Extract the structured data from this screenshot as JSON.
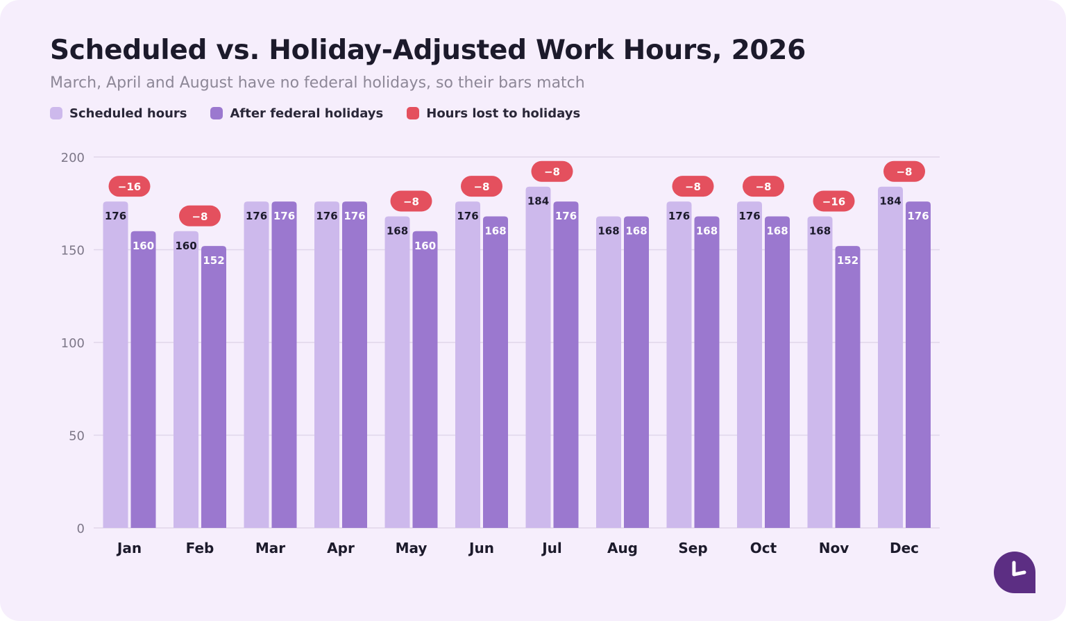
{
  "title": "Scheduled vs. Holiday-Adjusted Work Hours, 2026",
  "subtitle": "March, April and August have no federal holidays, so their bars match",
  "legend": [
    {
      "label": "Scheduled hours",
      "color": "#cdb9ec"
    },
    {
      "label": "After federal holidays",
      "color": "#9b78cf"
    },
    {
      "label": "Hours lost to holidays",
      "color": "#e4505e"
    }
  ],
  "colors": {
    "scheduled": "#cdb9ec",
    "adjusted": "#9b78cf",
    "lost": "#e4505e",
    "grid": "#e0d6ea",
    "brand": "#5c2e83"
  },
  "brand_icon": "clock-logo-icon",
  "chart_data": {
    "type": "bar",
    "categories": [
      "Jan",
      "Feb",
      "Mar",
      "Apr",
      "May",
      "Jun",
      "Jul",
      "Aug",
      "Sep",
      "Oct",
      "Nov",
      "Dec"
    ],
    "series": [
      {
        "name": "Scheduled hours",
        "values": [
          176,
          160,
          176,
          176,
          168,
          176,
          184,
          168,
          176,
          176,
          168,
          184
        ]
      },
      {
        "name": "After federal holidays",
        "values": [
          160,
          152,
          176,
          176,
          160,
          168,
          176,
          168,
          168,
          168,
          152,
          176
        ]
      }
    ],
    "lost_labels": [
      "−16",
      "−8",
      null,
      null,
      "−8",
      "−8",
      "−8",
      null,
      "−8",
      "−8",
      "−16",
      "−8"
    ],
    "yticks": [
      0,
      50,
      100,
      150,
      200
    ],
    "ylim": [
      0,
      200
    ],
    "grid": true,
    "legend_position": "top-left"
  }
}
